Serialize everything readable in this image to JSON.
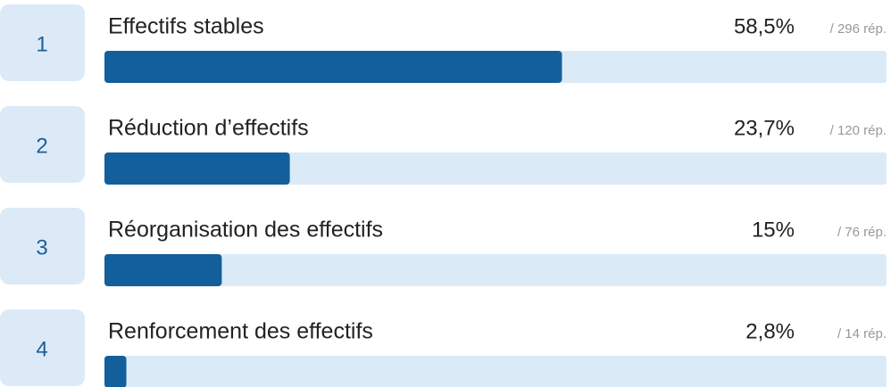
{
  "chart_data": {
    "type": "bar",
    "orientation": "horizontal",
    "ranks": [
      1,
      2,
      3,
      4
    ],
    "categories": [
      "Effectifs stables",
      "Réduction d’effectifs",
      "Réorganisation des effectifs",
      "Renforcement des effectifs"
    ],
    "values": [
      58.5,
      23.7,
      15,
      2.8
    ],
    "value_labels": [
      "58,5%",
      "23,7%",
      "15%",
      "2,8%"
    ],
    "responses": [
      "/ 296 rép.",
      "/ 120 rép.",
      "/ 76 rép.",
      "/ 14 rép."
    ],
    "xlim": [
      0,
      100
    ],
    "color": "#135f9c",
    "track_color": "#dbeaf7",
    "rank_color": "#dceaf7"
  }
}
